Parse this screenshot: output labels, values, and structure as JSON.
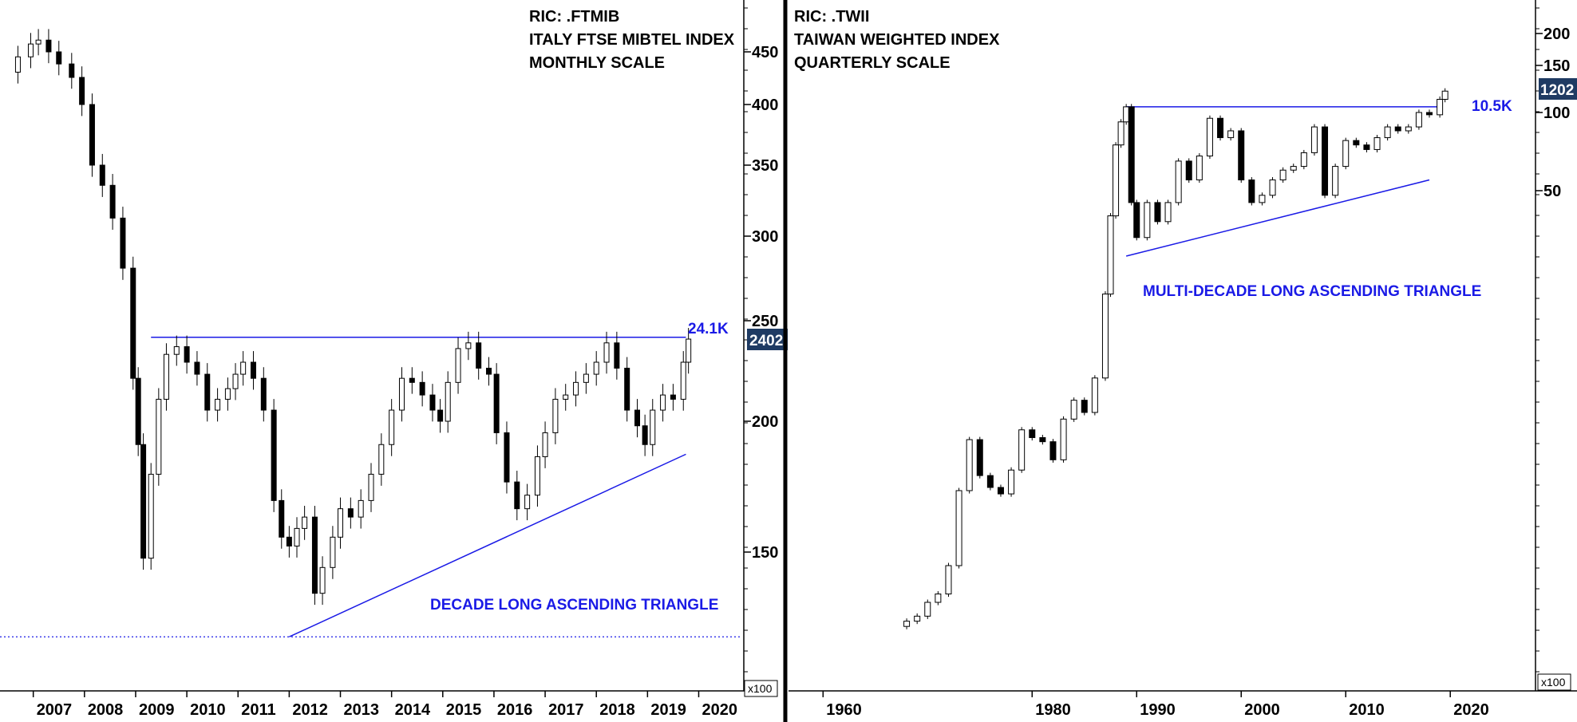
{
  "chart_data": [
    {
      "type": "candlestick",
      "header": [
        "RIC: .FTMIB",
        "ITALY FTSE MIBTEL INDEX",
        "MONTHLY SCALE"
      ],
      "y_ticks": [
        "450",
        "400",
        "350",
        "300",
        "250",
        "200",
        "150"
      ],
      "y_tick_values": [
        450,
        400,
        350,
        300,
        250,
        200,
        150
      ],
      "y_scale": "log",
      "ylim": [
        118,
        530
      ],
      "y_multiplier": "x100",
      "x_ticks": [
        "2007",
        "2008",
        "2009",
        "2010",
        "2011",
        "2012",
        "2013",
        "2014",
        "2015",
        "2016",
        "2017",
        "2018",
        "2019",
        "2020"
      ],
      "x_tick_values": [
        2007,
        2008,
        2009,
        2010,
        2011,
        2012,
        2013,
        2014,
        2015,
        2016,
        2017,
        2018,
        2019,
        2020
      ],
      "xlim": [
        2006.35,
        2020.85
      ],
      "last_price_label": "2402",
      "last_price": 240.2,
      "resistance_label": "24.1K",
      "resistance": {
        "value": 241,
        "from": 2009.3,
        "to": 2019.75
      },
      "support_line": {
        "from": [
          2012.0,
          124.5
        ],
        "to": [
          2019.75,
          186
        ]
      },
      "low_marker": 124.5,
      "pattern_label": "DECADE LONG ASCENDING TRIANGLE",
      "series": [
        {
          "values": [
            [
              2006.4,
              430
            ],
            [
              2006.7,
              445
            ],
            [
              2006.95,
              458
            ],
            [
              2007.1,
              462
            ],
            [
              2007.3,
              450
            ],
            [
              2007.5,
              438
            ],
            [
              2007.75,
              425
            ],
            [
              2007.95,
              400
            ],
            [
              2008.15,
              350
            ],
            [
              2008.35,
              335
            ],
            [
              2008.55,
              312
            ],
            [
              2008.75,
              280
            ],
            [
              2008.95,
              220
            ],
            [
              2009.05,
              190
            ],
            [
              2009.15,
              148
            ],
            [
              2009.3,
              178
            ],
            [
              2009.45,
              210
            ],
            [
              2009.6,
              232
            ],
            [
              2009.8,
              236
            ],
            [
              2010.0,
              228
            ],
            [
              2010.2,
              222
            ],
            [
              2010.4,
              205
            ],
            [
              2010.6,
              210
            ],
            [
              2010.8,
              215
            ],
            [
              2010.95,
              222
            ],
            [
              2011.1,
              228
            ],
            [
              2011.3,
              220
            ],
            [
              2011.5,
              205
            ],
            [
              2011.7,
              168
            ],
            [
              2011.85,
              155
            ],
            [
              2012.0,
              152
            ],
            [
              2012.15,
              158
            ],
            [
              2012.3,
              162
            ],
            [
              2012.5,
              137
            ],
            [
              2012.65,
              145
            ],
            [
              2012.85,
              155
            ],
            [
              2013.0,
              165
            ],
            [
              2013.2,
              162
            ],
            [
              2013.4,
              168
            ],
            [
              2013.6,
              178
            ],
            [
              2013.8,
              190
            ],
            [
              2014.0,
              205
            ],
            [
              2014.2,
              220
            ],
            [
              2014.4,
              218
            ],
            [
              2014.6,
              212
            ],
            [
              2014.8,
              205
            ],
            [
              2014.95,
              200
            ],
            [
              2015.1,
              218
            ],
            [
              2015.3,
              235
            ],
            [
              2015.5,
              238
            ],
            [
              2015.7,
              225
            ],
            [
              2015.9,
              222
            ],
            [
              2016.05,
              195
            ],
            [
              2016.25,
              175
            ],
            [
              2016.45,
              165
            ],
            [
              2016.65,
              170
            ],
            [
              2016.85,
              185
            ],
            [
              2017.0,
              195
            ],
            [
              2017.2,
              210
            ],
            [
              2017.4,
              212
            ],
            [
              2017.6,
              218
            ],
            [
              2017.8,
              222
            ],
            [
              2018.0,
              228
            ],
            [
              2018.2,
              238
            ],
            [
              2018.4,
              225
            ],
            [
              2018.6,
              205
            ],
            [
              2018.8,
              198
            ],
            [
              2018.95,
              190
            ],
            [
              2019.1,
              205
            ],
            [
              2019.3,
              212
            ],
            [
              2019.5,
              210
            ],
            [
              2019.7,
              228
            ],
            [
              2019.8,
              240
            ]
          ]
        }
      ]
    },
    {
      "type": "candlestick",
      "header": [
        "RIC: .TWII",
        "TAIWAN WEIGHTED INDEX",
        "QUARTERLY SCALE"
      ],
      "y_ticks": [
        "200",
        "150",
        "100",
        "50"
      ],
      "y_tick_values": [
        200,
        150,
        100,
        50
      ],
      "y_scale": "log",
      "ylim": [
        0.9,
        260
      ],
      "y_multiplier": "x100",
      "x_ticks": [
        "1960",
        "1980",
        "1990",
        "2000",
        "2010",
        "2020"
      ],
      "x_tick_values": [
        1960,
        1980,
        1990,
        2000,
        2010,
        2020
      ],
      "xlim": [
        1957,
        2028
      ],
      "last_price_label": "1202",
      "last_price": 120.2,
      "resistance_label": "10.5K",
      "resistance": {
        "value": 105,
        "from": 1989.0,
        "to": 2019.0
      },
      "support_line": {
        "from": [
          1989.0,
          28
        ],
        "to": [
          2018.0,
          55
        ]
      },
      "pattern_label": "MULTI-DECADE LONG ASCENDING TRIANGLE",
      "series": [
        {
          "values": [
            [
              1967,
              1.05
            ],
            [
              1968,
              1.1
            ],
            [
              1969,
              1.15
            ],
            [
              1970,
              1.3
            ],
            [
              1971,
              1.4
            ],
            [
              1972,
              1.8
            ],
            [
              1973,
              3.5
            ],
            [
              1974,
              5.5
            ],
            [
              1975,
              4.0
            ],
            [
              1976,
              3.6
            ],
            [
              1977,
              3.4
            ],
            [
              1978,
              4.2
            ],
            [
              1979,
              6.0
            ],
            [
              1980,
              5.6
            ],
            [
              1981,
              5.4
            ],
            [
              1982,
              4.6
            ],
            [
              1983,
              6.6
            ],
            [
              1984,
              7.8
            ],
            [
              1985,
              7.0
            ],
            [
              1986,
              9.5
            ],
            [
              1987,
              20.0
            ],
            [
              1987.5,
              40.0
            ],
            [
              1988,
              75.0
            ],
            [
              1988.5,
              92.0
            ],
            [
              1989,
              105.0
            ],
            [
              1989.5,
              45.0
            ],
            [
              1990,
              33.0
            ],
            [
              1991,
              45.0
            ],
            [
              1992,
              38.0
            ],
            [
              1993,
              45.0
            ],
            [
              1994,
              65.0
            ],
            [
              1995,
              55.0
            ],
            [
              1996,
              68.0
            ],
            [
              1997,
              95.0
            ],
            [
              1998,
              80.0
            ],
            [
              1999,
              85.0
            ],
            [
              2000,
              55.0
            ],
            [
              2001,
              45.0
            ],
            [
              2002,
              48.0
            ],
            [
              2003,
              55.0
            ],
            [
              2004,
              60.0
            ],
            [
              2005,
              62.0
            ],
            [
              2006,
              70.0
            ],
            [
              2007,
              88.0
            ],
            [
              2008,
              48.0
            ],
            [
              2009,
              62.0
            ],
            [
              2010,
              78.0
            ],
            [
              2011,
              75.0
            ],
            [
              2012,
              72.0
            ],
            [
              2013,
              80.0
            ],
            [
              2014,
              88.0
            ],
            [
              2015,
              85.0
            ],
            [
              2016,
              88.0
            ],
            [
              2017,
              100.0
            ],
            [
              2018,
              98.0
            ],
            [
              2019,
              112.0
            ],
            [
              2019.5,
              120.2
            ]
          ]
        }
      ]
    }
  ]
}
